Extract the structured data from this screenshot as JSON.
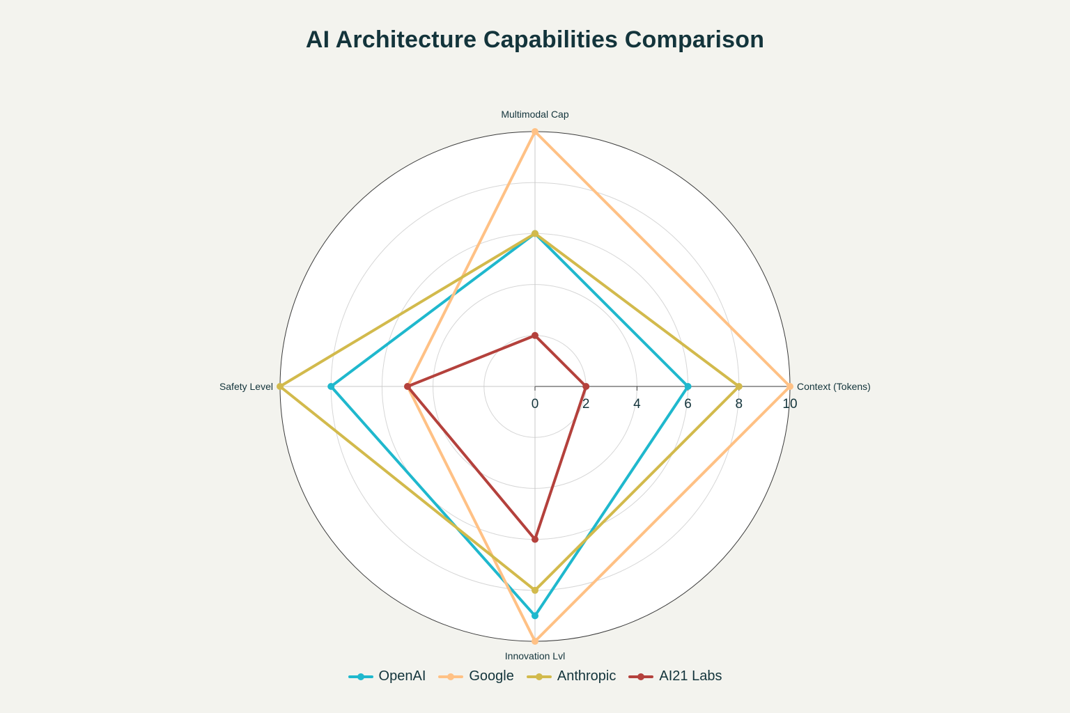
{
  "title": "AI Architecture Capabilities Comparison",
  "chart_data": {
    "type": "radar",
    "axes": [
      "Context (Tokens)",
      "Multimodal Cap",
      "Safety Level",
      "Innovation Lvl"
    ],
    "range": [
      0,
      10
    ],
    "radial_ticks": [
      0,
      2,
      4,
      6,
      8,
      10
    ],
    "gridlines": true,
    "legend_position": "bottom",
    "series": [
      {
        "name": "OpenAI",
        "color": "#1fb8cd",
        "values": [
          6,
          6,
          8,
          9
        ]
      },
      {
        "name": "Google",
        "color": "#ffc185",
        "values": [
          10,
          10,
          5,
          10
        ]
      },
      {
        "name": "Anthropic",
        "color": "#d2ba4c",
        "values": [
          8,
          6,
          10,
          8
        ]
      },
      {
        "name": "AI21 Labs",
        "color": "#b4413c",
        "values": [
          2,
          2,
          5,
          6
        ]
      }
    ]
  }
}
